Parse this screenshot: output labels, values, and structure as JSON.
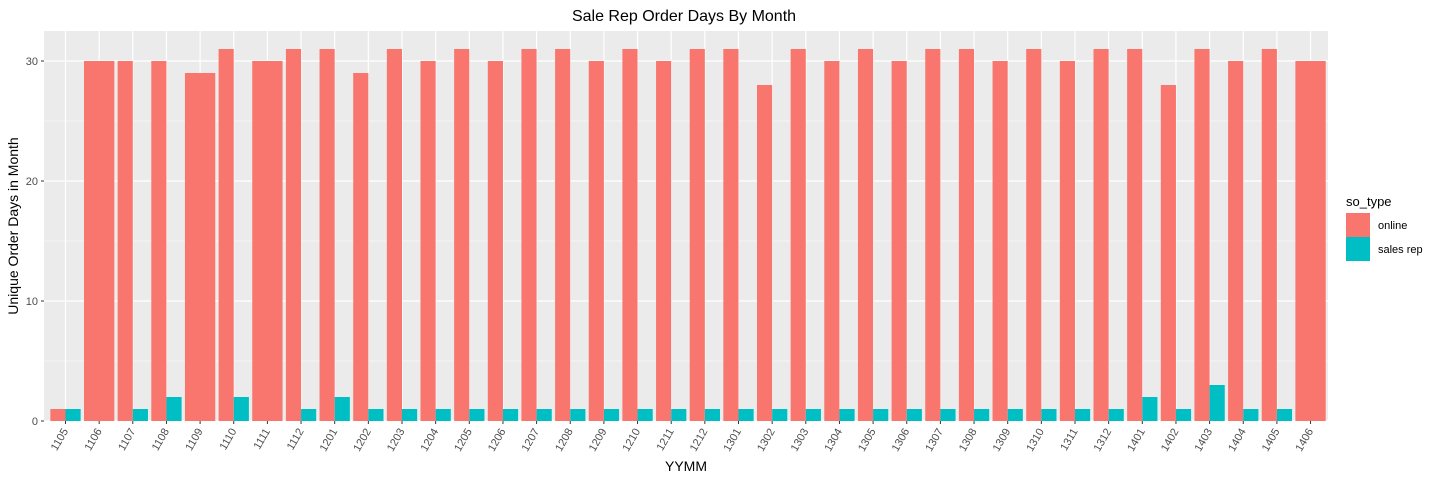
{
  "chart_data": {
    "type": "bar",
    "title": "Sale Rep Order Days By Month",
    "xlabel": "YYMM",
    "ylabel": "Unique Order Days in Month",
    "ylim": [
      0,
      32.5
    ],
    "y_ticks": [
      0,
      10,
      20,
      30
    ],
    "grid": true,
    "legend_position": "right",
    "legend_title": "so_type",
    "colors": {
      "online": "#F8766D",
      "sales rep": "#00BFC4",
      "panel": "#EBEBEB",
      "grid": "#FFFFFF"
    },
    "categories": [
      "1105",
      "1106",
      "1107",
      "1108",
      "1109",
      "1110",
      "1111",
      "1112",
      "1201",
      "1202",
      "1203",
      "1204",
      "1205",
      "1206",
      "1207",
      "1208",
      "1209",
      "1210",
      "1211",
      "1212",
      "1301",
      "1302",
      "1303",
      "1304",
      "1305",
      "1306",
      "1307",
      "1308",
      "1309",
      "1310",
      "1311",
      "1312",
      "1401",
      "1402",
      "1403",
      "1404",
      "1405",
      "1406"
    ],
    "series": [
      {
        "name": "online",
        "values": [
          1,
          30,
          30,
          30,
          29,
          31,
          30,
          31,
          31,
          29,
          31,
          30,
          31,
          30,
          31,
          31,
          30,
          31,
          30,
          31,
          31,
          28,
          31,
          30,
          31,
          30,
          31,
          31,
          30,
          31,
          30,
          31,
          31,
          28,
          31,
          30,
          31,
          30
        ]
      },
      {
        "name": "sales rep",
        "values": [
          1,
          null,
          1,
          2,
          null,
          2,
          null,
          1,
          2,
          1,
          1,
          1,
          1,
          1,
          1,
          1,
          1,
          1,
          1,
          1,
          1,
          1,
          1,
          1,
          1,
          1,
          1,
          1,
          1,
          1,
          1,
          1,
          2,
          1,
          3,
          1,
          1,
          null
        ]
      }
    ]
  }
}
